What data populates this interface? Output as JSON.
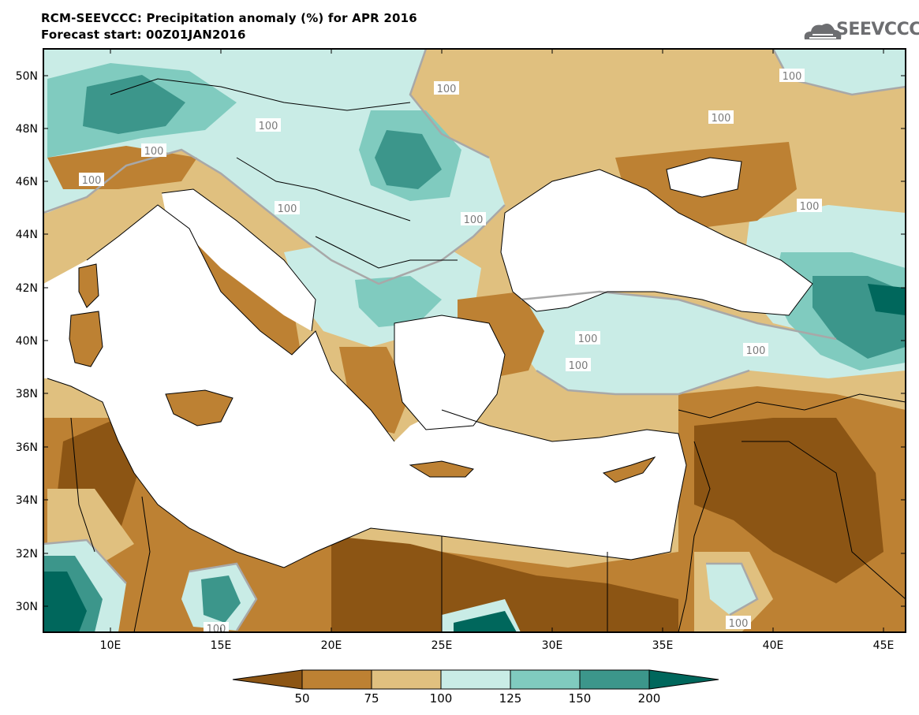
{
  "header": {
    "title_line1": "RCM-SEEVCCC: Precipitation anomaly (%) for APR 2016",
    "title_line2": "Forecast start: 00Z01JAN2016",
    "logo_text": "SEEVCCC",
    "logo_icon": "cloud-logo-icon"
  },
  "map": {
    "region": "Eastern Mediterranean / Balkans / Black Sea",
    "lon_ticks": [
      "10E",
      "15E",
      "20E",
      "25E",
      "30E",
      "35E",
      "40E",
      "45E"
    ],
    "lat_ticks": [
      "50N",
      "48N",
      "46N",
      "44N",
      "42N",
      "40N",
      "38N",
      "36N",
      "34N",
      "32N",
      "30N"
    ],
    "contour_labels": [
      "100",
      "100",
      "100",
      "100",
      "100",
      "100",
      "100",
      "100",
      "100",
      "100",
      "100",
      "100",
      "100",
      "100"
    ],
    "land_colors": {
      "below_50": "#8c5514",
      "50_75": "#bd8133",
      "75_100": "#e0c07f",
      "100_125": "#c9ece6",
      "125_150": "#80cbbf",
      "150_200": "#3c968b",
      "above_200": "#00675c",
      "sea": "#ffffff"
    }
  },
  "colorbar": {
    "labels": [
      "50",
      "75",
      "100",
      "125",
      "150",
      "200"
    ],
    "colors": [
      "#8c5514",
      "#bd8133",
      "#e0c07f",
      "#c9ece6",
      "#80cbbf",
      "#3c968b",
      "#00675c"
    ]
  }
}
